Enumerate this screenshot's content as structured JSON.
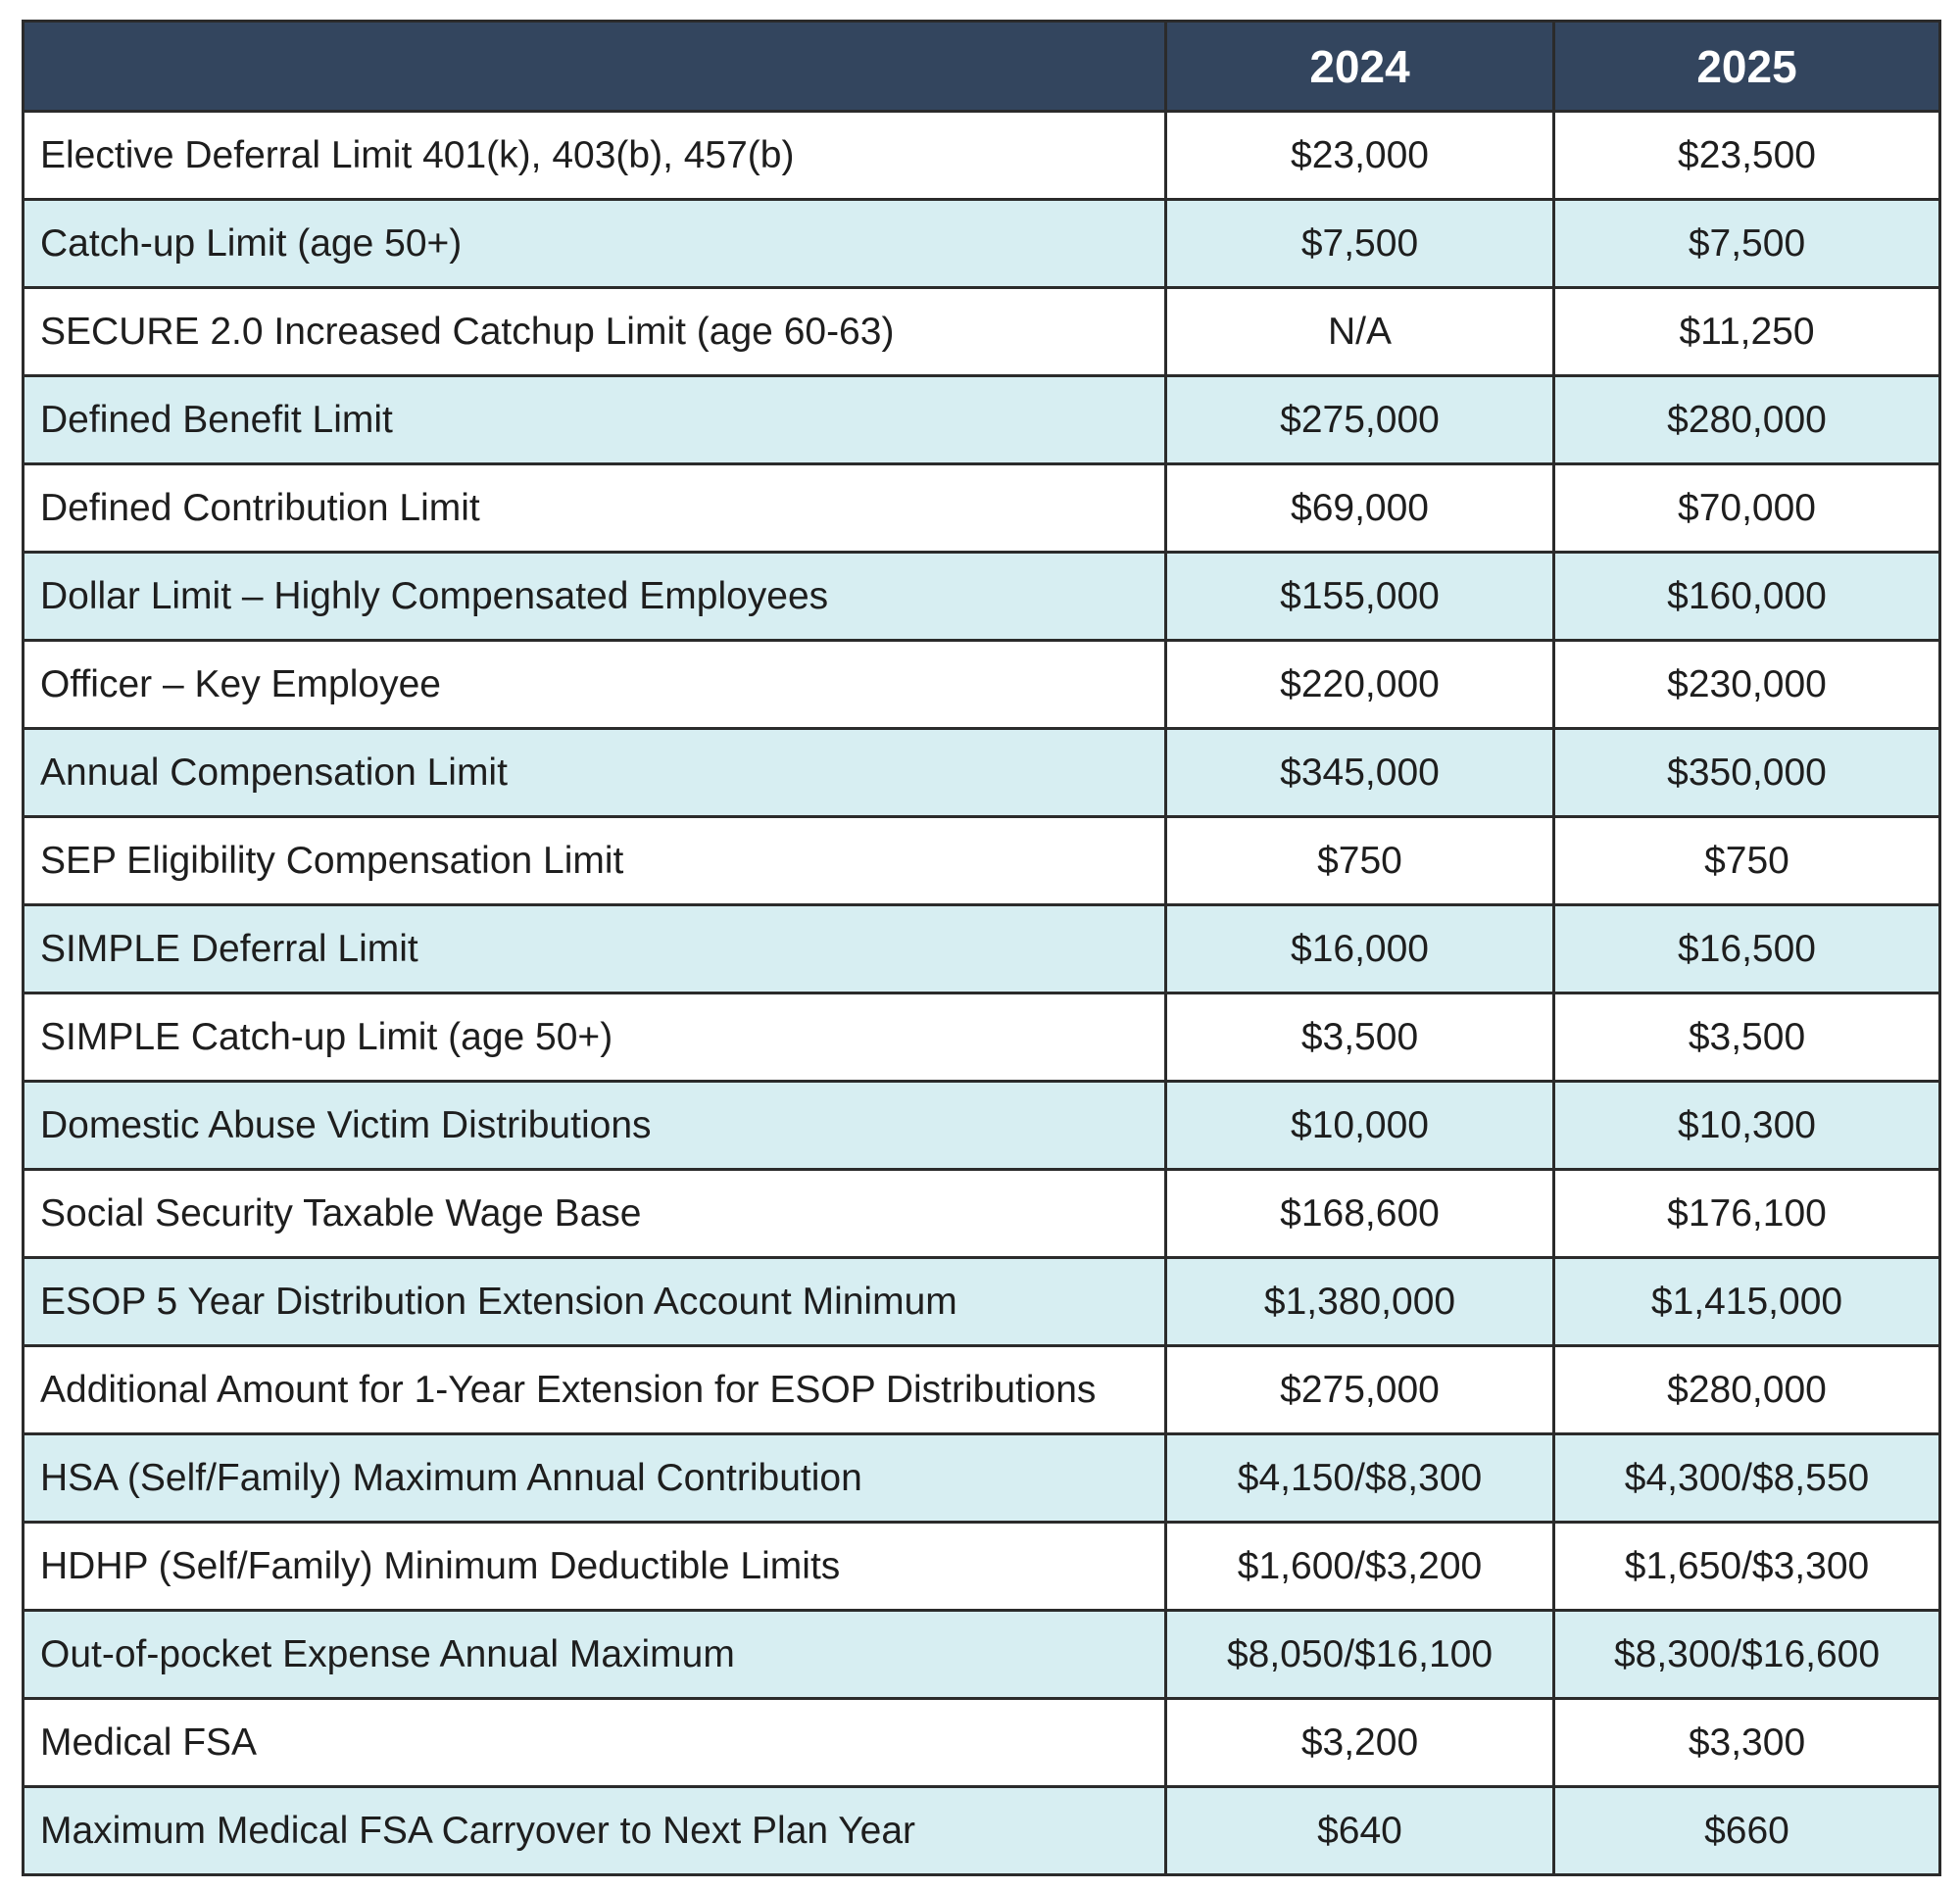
{
  "table": {
    "header": {
      "label": "",
      "col1": "2024",
      "col2": "2025"
    },
    "rows": [
      {
        "label": "Elective Deferral Limit 401(k), 403(b), 457(b)",
        "y2024": "$23,000",
        "y2025": "$23,500"
      },
      {
        "label": "Catch-up Limit (age 50+)",
        "y2024": "$7,500",
        "y2025": "$7,500"
      },
      {
        "label": "SECURE 2.0 Increased Catchup Limit (age 60-63)",
        "y2024": "N/A",
        "y2025": "$11,250"
      },
      {
        "label": "Defined Benefit Limit",
        "y2024": "$275,000",
        "y2025": "$280,000"
      },
      {
        "label": "Defined Contribution Limit",
        "y2024": "$69,000",
        "y2025": "$70,000"
      },
      {
        "label": "Dollar Limit – Highly Compensated Employees",
        "y2024": "$155,000",
        "y2025": "$160,000"
      },
      {
        "label": "Officer – Key Employee",
        "y2024": "$220,000",
        "y2025": "$230,000"
      },
      {
        "label": "Annual Compensation Limit",
        "y2024": "$345,000",
        "y2025": "$350,000"
      },
      {
        "label": "SEP Eligibility Compensation Limit",
        "y2024": "$750",
        "y2025": "$750"
      },
      {
        "label": "SIMPLE Deferral Limit",
        "y2024": "$16,000",
        "y2025": "$16,500"
      },
      {
        "label": "SIMPLE Catch-up Limit (age 50+)",
        "y2024": "$3,500",
        "y2025": "$3,500"
      },
      {
        "label": "Domestic Abuse Victim Distributions",
        "y2024": "$10,000",
        "y2025": "$10,300"
      },
      {
        "label": "Social Security Taxable Wage Base",
        "y2024": "$168,600",
        "y2025": "$176,100"
      },
      {
        "label": "ESOP 5 Year Distribution Extension Account Minimum",
        "y2024": "$1,380,000",
        "y2025": "$1,415,000"
      },
      {
        "label": "Additional Amount for 1-Year Extension for ESOP Distributions",
        "y2024": "$275,000",
        "y2025": "$280,000"
      },
      {
        "label": "HSA (Self/Family) Maximum Annual Contribution",
        "y2024": "$4,150/$8,300",
        "y2025": "$4,300/$8,550"
      },
      {
        "label": "HDHP (Self/Family) Minimum Deductible Limits",
        "y2024": "$1,600/$3,200",
        "y2025": "$1,650/$3,300"
      },
      {
        "label": "Out-of-pocket Expense Annual Maximum",
        "y2024": "$8,050/$16,100",
        "y2025": "$8,300/$16,600"
      },
      {
        "label": "Medical FSA",
        "y2024": "$3,200",
        "y2025": "$3,300"
      },
      {
        "label": "Maximum Medical FSA Carryover to Next Plan Year",
        "y2024": "$640",
        "y2025": "$660"
      }
    ]
  },
  "colors": {
    "header_bg": "#33455e",
    "header_text": "#ffffff",
    "row_alt_bg": "#d7eef2",
    "row_bg": "#ffffff",
    "border": "#2b2b2b"
  }
}
